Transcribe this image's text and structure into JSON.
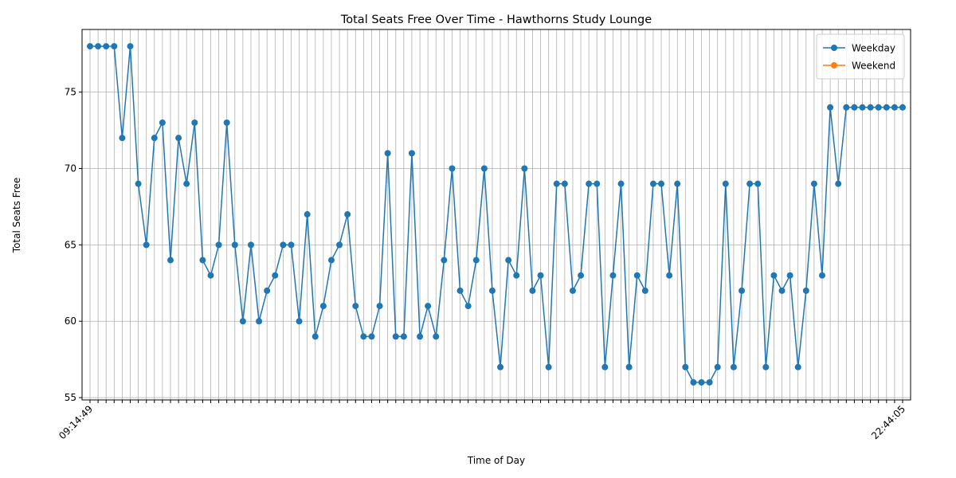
{
  "chart_data": {
    "type": "line",
    "title": "Total Seats Free Over Time - Hawthorns Study Lounge",
    "x_label": "Time of Day",
    "y_label": "Total Seats Free",
    "categories": [
      "09:14:49",
      null,
      null,
      null,
      null,
      null,
      null,
      null,
      null,
      null,
      null,
      null,
      null,
      null,
      null,
      null,
      null,
      null,
      null,
      null,
      null,
      null,
      null,
      null,
      null,
      null,
      null,
      null,
      null,
      null,
      null,
      null,
      null,
      null,
      null,
      null,
      null,
      null,
      null,
      null,
      null,
      null,
      null,
      null,
      null,
      null,
      null,
      null,
      null,
      null,
      null,
      null,
      null,
      null,
      null,
      null,
      null,
      null,
      null,
      null,
      null,
      null,
      null,
      null,
      null,
      null,
      null,
      null,
      null,
      null,
      null,
      null,
      null,
      null,
      null,
      null,
      null,
      null,
      null,
      null,
      null,
      null,
      null,
      null,
      null,
      null,
      null,
      null,
      null,
      null,
      null,
      null,
      null,
      null,
      null,
      null,
      null,
      null,
      null,
      null,
      null,
      "22:44:05"
    ],
    "series": [
      {
        "name": "Weekday",
        "color": "#1f77b4",
        "values": [
          78,
          78,
          78,
          78,
          72,
          78,
          69,
          65,
          72,
          73,
          64,
          72,
          69,
          73,
          64,
          63,
          65,
          73,
          65,
          60,
          65,
          60,
          62,
          63,
          65,
          65,
          60,
          67,
          59,
          61,
          64,
          65,
          67,
          61,
          59,
          59,
          61,
          71,
          59,
          59,
          71,
          59,
          61,
          59,
          64,
          70,
          62,
          61,
          64,
          70,
          62,
          57,
          64,
          63,
          70,
          62,
          63,
          57,
          69,
          69,
          62,
          63,
          69,
          69,
          57,
          63,
          69,
          57,
          63,
          62,
          69,
          69,
          63,
          69,
          57,
          56,
          56,
          56,
          57,
          69,
          57,
          62,
          69,
          69,
          57,
          63,
          62,
          63,
          57,
          62,
          69,
          63,
          74,
          69,
          74,
          74,
          74,
          74,
          74,
          74,
          74,
          74
        ]
      },
      {
        "name": "Weekend",
        "color": "#ff7f0e",
        "values": [
          null,
          null,
          null,
          null,
          null,
          null,
          null,
          null,
          null,
          null,
          null,
          null,
          null,
          null,
          null,
          null,
          null,
          null,
          null,
          null,
          null,
          null,
          null,
          null,
          null,
          null,
          null,
          null,
          null,
          null,
          null,
          null,
          null,
          null,
          null,
          null,
          null,
          null,
          null,
          null,
          null,
          null,
          null,
          null,
          null,
          null,
          null,
          null,
          null,
          null,
          null,
          null,
          null,
          null,
          null,
          null,
          null,
          null,
          null,
          null,
          null,
          null,
          null,
          null,
          null,
          null,
          null,
          null,
          null,
          null,
          null,
          null,
          null,
          null,
          null,
          null,
          null,
          null,
          null,
          null,
          null,
          null,
          null,
          null,
          null,
          null,
          null,
          null,
          null,
          null,
          null,
          null,
          null,
          null,
          null,
          null,
          null,
          null,
          null,
          null,
          null,
          null
        ]
      }
    ],
    "ylim": [
      54.85,
      79.1
    ],
    "yticks": [
      55,
      60,
      65,
      70,
      75
    ],
    "grid": true,
    "legend": "upper right"
  }
}
